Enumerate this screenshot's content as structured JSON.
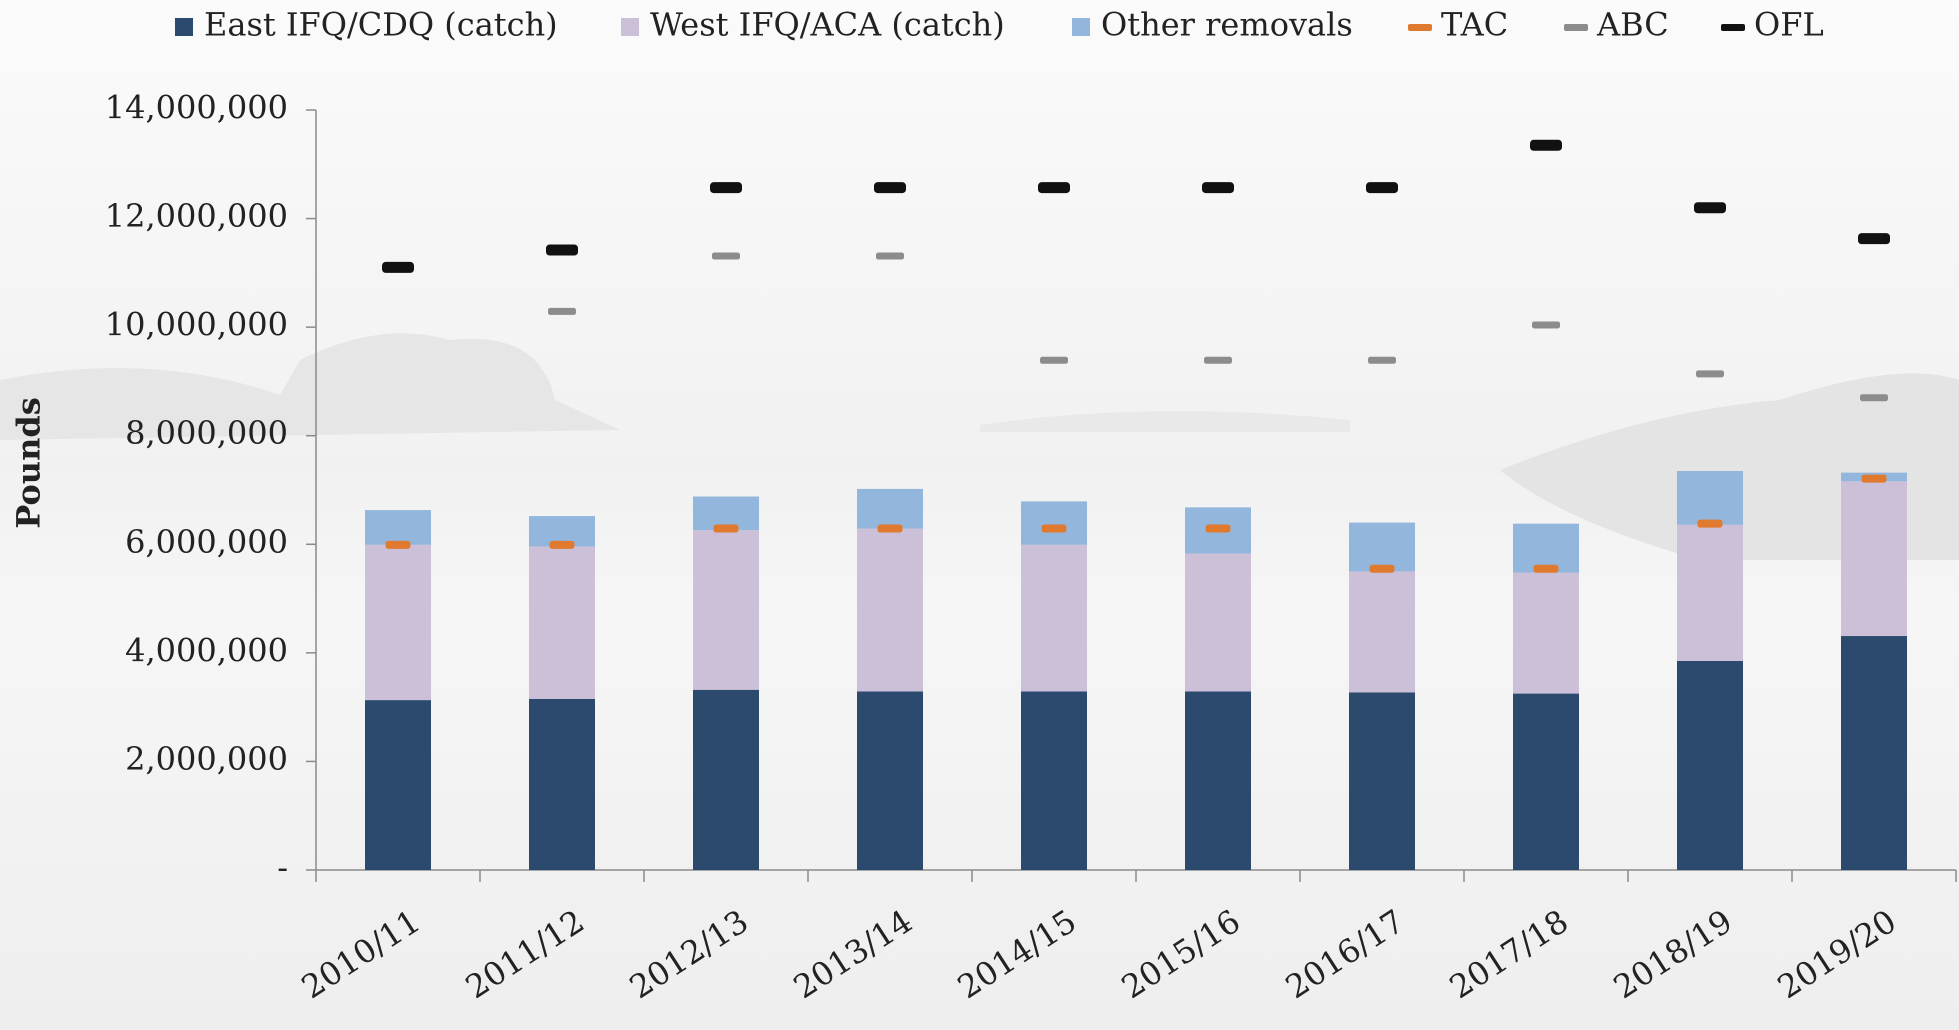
{
  "chart_data": {
    "type": "bar",
    "y_label": "Pounds",
    "categories": [
      "2010/11",
      "2011/12",
      "2012/13",
      "2013/14",
      "2014/15",
      "2015/16",
      "2016/17",
      "2017/18",
      "2018/19",
      "2019/20"
    ],
    "series": [
      {
        "name": "East IFQ/CDQ (catch)",
        "style": "stack",
        "color": "#2b4a6e",
        "values": [
          3130000,
          3150000,
          3320000,
          3290000,
          3290000,
          3290000,
          3270000,
          3250000,
          3850000,
          4310000
        ]
      },
      {
        "name": "West IFQ/ACA (catch)",
        "style": "stack",
        "color": "#cbc0d8",
        "values": [
          2860000,
          2810000,
          2940000,
          3000000,
          2700000,
          2540000,
          2230000,
          2230000,
          2510000,
          2850000
        ]
      },
      {
        "name": "Other removals",
        "style": "stack",
        "color": "#93b6dc",
        "values": [
          640000,
          560000,
          620000,
          730000,
          800000,
          850000,
          900000,
          900000,
          990000,
          160000
        ]
      },
      {
        "name": "TAC",
        "style": "dash",
        "color": "#e07a2e",
        "values": [
          5990000,
          5990000,
          6290000,
          6290000,
          6290000,
          6290000,
          5550000,
          5550000,
          6380000,
          7210000
        ]
      },
      {
        "name": "ABC",
        "style": "dash",
        "color": "#8c8c8c",
        "values": [
          null,
          10290000,
          11310000,
          11310000,
          9390000,
          9390000,
          9390000,
          10040000,
          9140000,
          8700000
        ]
      },
      {
        "name": "OFL",
        "style": "dash",
        "color": "#111111",
        "values": [
          11100000,
          11420000,
          12570000,
          12570000,
          12570000,
          12570000,
          12570000,
          13350000,
          12200000,
          11630000
        ]
      }
    ],
    "ylim": [
      0,
      14000000
    ],
    "yticks": [
      {
        "value": 0,
        "label": "-"
      },
      {
        "value": 2000000,
        "label": "2,000,000"
      },
      {
        "value": 4000000,
        "label": "4,000,000"
      },
      {
        "value": 6000000,
        "label": "6,000,000"
      },
      {
        "value": 8000000,
        "label": "8,000,000"
      },
      {
        "value": 10000000,
        "label": "10,000,000"
      },
      {
        "value": 12000000,
        "label": "12,000,000"
      },
      {
        "value": 14000000,
        "label": "14,000,000"
      }
    ],
    "grid": false,
    "legend": "top"
  }
}
